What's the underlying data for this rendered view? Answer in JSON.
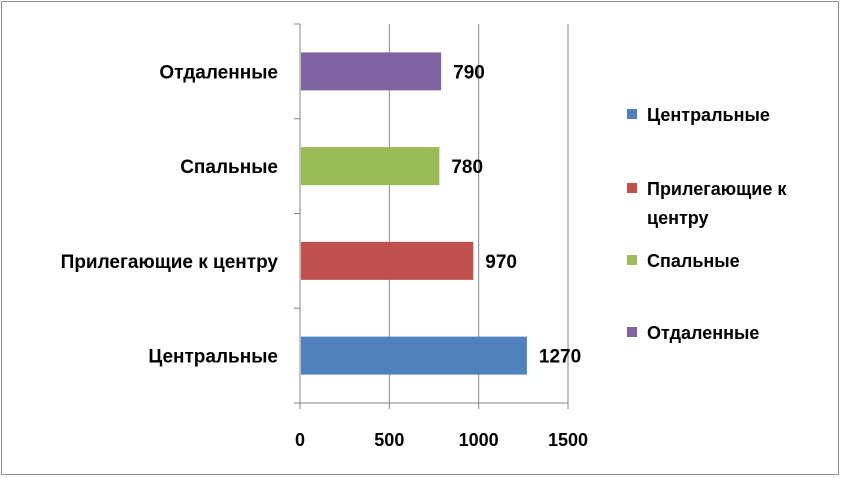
{
  "chart_data": {
    "type": "bar",
    "orientation": "horizontal",
    "categories": [
      "Центральные",
      "Прилегающие к центру",
      "Спальные",
      "Отдаленные"
    ],
    "values": [
      1270,
      970,
      780,
      790
    ],
    "colors": [
      "#4f81bd",
      "#c0504d",
      "#9bbb59",
      "#8064a2"
    ],
    "xlim": [
      0,
      1500
    ],
    "xticks": [
      "0",
      "500",
      "1000",
      "1500"
    ],
    "grid": "vertical",
    "data_labels": [
      "1270",
      "970",
      "780",
      "790"
    ],
    "legend": {
      "position": "right",
      "entries": [
        {
          "lines": [
            "Центральные"
          ],
          "color": "#4f81bd"
        },
        {
          "lines": [
            "Прилегающие к",
            "центру"
          ],
          "color": "#c0504d"
        },
        {
          "lines": [
            "Спальные"
          ],
          "color": "#9bbb59"
        },
        {
          "lines": [
            "Отдаленные"
          ],
          "color": "#8064a2"
        }
      ]
    }
  }
}
